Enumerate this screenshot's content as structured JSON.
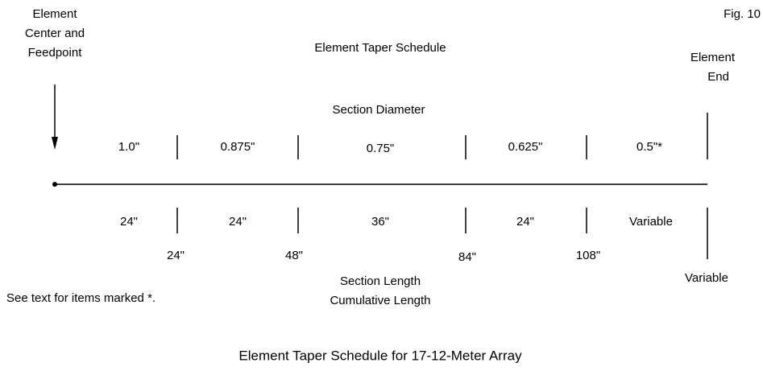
{
  "figure": "Fig. 10",
  "title": "Element Taper Schedule",
  "left_label": [
    "Element",
    "Center and",
    "Feedpoint"
  ],
  "right_label": [
    "Element",
    "End"
  ],
  "diameter_heading": "Section Diameter",
  "diameters": [
    "1.0\"",
    "0.875\"",
    "0.75\"",
    "0.625\"",
    "0.5\"*"
  ],
  "section_lengths": [
    "24\"",
    "24\"",
    "36\"",
    "24\"",
    "Variable"
  ],
  "cumulative_lengths": [
    "24\"",
    "48\"",
    "84\"",
    "108\"",
    "Variable"
  ],
  "length_legend": [
    "Section Length",
    "Cumulative Length"
  ],
  "note": "See text for items marked *.",
  "caption": "Element Taper Schedule for 17-12-Meter Array"
}
